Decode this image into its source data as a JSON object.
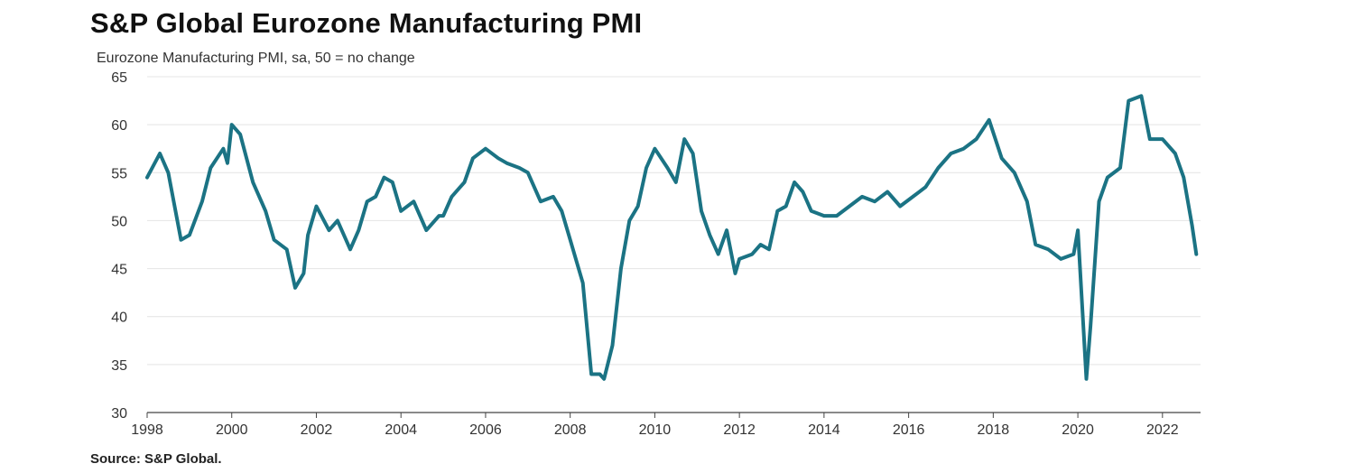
{
  "title": "S&P Global Eurozone Manufacturing PMI",
  "subtitle": "Eurozone Manufacturing PMI, sa, 50 = no change",
  "source": "Source: S&P Global.",
  "chart_data": {
    "type": "line",
    "title": "S&P Global Eurozone Manufacturing PMI",
    "subtitle": "Eurozone Manufacturing PMI, sa, 50 = no change",
    "xlabel": "",
    "ylabel": "",
    "ylim": [
      30,
      65
    ],
    "xlim": [
      1998,
      2022.9
    ],
    "y_ticks": [
      "30",
      "35",
      "40",
      "45",
      "50",
      "55",
      "60",
      "65"
    ],
    "x_ticks": [
      "1998",
      "2000",
      "2002",
      "2004",
      "2006",
      "2008",
      "2010",
      "2012",
      "2014",
      "2016",
      "2018",
      "2020",
      "2022"
    ],
    "grid": "horizontal",
    "line_color": "#1b7384",
    "series": [
      {
        "x": [
          1998.0,
          1998.3,
          1998.5,
          1998.8,
          1999.0,
          1999.3,
          1999.5,
          1999.8,
          1999.9,
          2000.0,
          2000.2,
          2000.5,
          2000.8,
          2001.0,
          2001.3,
          2001.5,
          2001.7,
          2001.8,
          2002.0,
          2002.3,
          2002.5,
          2002.8,
          2003.0,
          2003.2,
          2003.4,
          2003.6,
          2003.8,
          2004.0,
          2004.3,
          2004.6,
          2004.9,
          2005.0,
          2005.2,
          2005.5,
          2005.7,
          2006.0,
          2006.3,
          2006.5,
          2006.8,
          2007.0,
          2007.3,
          2007.6,
          2007.8,
          2008.0,
          2008.3,
          2008.5,
          2008.7,
          2008.8,
          2009.0,
          2009.2,
          2009.4,
          2009.6,
          2009.8,
          2010.0,
          2010.3,
          2010.5,
          2010.7,
          2010.9,
          2011.1,
          2011.3,
          2011.5,
          2011.7,
          2011.9,
          2012.0,
          2012.3,
          2012.5,
          2012.7,
          2012.9,
          2013.1,
          2013.3,
          2013.5,
          2013.7,
          2014.0,
          2014.3,
          2014.6,
          2014.9,
          2015.2,
          2015.5,
          2015.8,
          2016.1,
          2016.4,
          2016.7,
          2017.0,
          2017.3,
          2017.6,
          2017.9,
          2018.2,
          2018.5,
          2018.8,
          2019.0,
          2019.3,
          2019.6,
          2019.9,
          2020.0,
          2020.2,
          2020.3,
          2020.5,
          2020.7,
          2021.0,
          2021.2,
          2021.5,
          2021.7,
          2022.0,
          2022.3,
          2022.5,
          2022.7,
          2022.8
        ],
        "values": [
          54.5,
          57.0,
          55.0,
          48.0,
          48.5,
          52.0,
          55.5,
          57.5,
          56.0,
          60.0,
          59.0,
          54.0,
          51.0,
          48.0,
          47.0,
          43.0,
          44.5,
          48.5,
          51.5,
          49.0,
          50.0,
          47.0,
          49.0,
          52.0,
          52.5,
          54.5,
          54.0,
          51.0,
          52.0,
          49.0,
          50.5,
          50.5,
          52.5,
          54.0,
          56.5,
          57.5,
          56.5,
          56.0,
          55.5,
          55.0,
          52.0,
          52.5,
          51.0,
          48.0,
          43.5,
          34.0,
          34.0,
          33.5,
          37.0,
          45.0,
          50.0,
          51.5,
          55.5,
          57.5,
          55.5,
          54.0,
          58.5,
          57.0,
          51.0,
          48.5,
          46.5,
          49.0,
          44.5,
          46.0,
          46.5,
          47.5,
          47.0,
          51.0,
          51.5,
          54.0,
          53.0,
          51.0,
          50.5,
          50.5,
          51.5,
          52.5,
          52.0,
          53.0,
          51.5,
          52.5,
          53.5,
          55.5,
          57.0,
          57.5,
          58.5,
          60.5,
          56.5,
          55.0,
          52.0,
          47.5,
          47.0,
          46.0,
          46.5,
          49.0,
          33.5,
          39.0,
          52.0,
          54.5,
          55.5,
          62.5,
          63.0,
          58.5,
          58.5,
          57.0,
          54.5,
          49.5,
          46.5
        ]
      }
    ]
  }
}
